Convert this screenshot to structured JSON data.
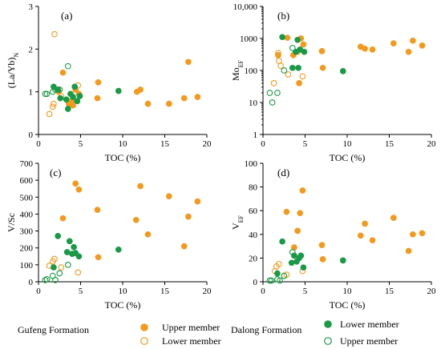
{
  "colors": {
    "gufeng": "#f39a1c",
    "dalong": "#1a9a47"
  },
  "legend": {
    "gufeng_title": "Gufeng Formation",
    "dalong_title": "Dalong Formation",
    "gufeng_upper": "Upper member",
    "gufeng_lower": "Lower member",
    "dalong_lower": "Lower member",
    "dalong_upper": "Upper member"
  },
  "chart_data": [
    {
      "panel": "(a)",
      "type": "scatter",
      "xlabel": "TOC (%)",
      "ylabel": "(La/Yb)N",
      "ylabel_main": "(La/Yb)",
      "ylabel_sub": "N",
      "xlim": [
        0,
        20
      ],
      "ylim": [
        0,
        3
      ],
      "yscale": "linear",
      "xticks": [
        "0",
        "5",
        "10",
        "15",
        "20"
      ],
      "yticks": [
        "0",
        "1",
        "2",
        "3"
      ],
      "series": [
        {
          "key": "gufeng_upper",
          "fill": true,
          "color": "#f39a1c",
          "points": [
            [
              2.4,
              1.0
            ],
            [
              2.9,
              1.45
            ],
            [
              3.6,
              0.72
            ],
            [
              3.9,
              0.78
            ],
            [
              4.1,
              0.68
            ],
            [
              4.4,
              1.05
            ],
            [
              4.8,
              0.95
            ],
            [
              7.0,
              0.85
            ],
            [
              7.1,
              1.22
            ],
            [
              11.7,
              1.0
            ],
            [
              12.1,
              1.05
            ],
            [
              13.0,
              0.72
            ],
            [
              15.5,
              0.72
            ],
            [
              17.3,
              0.85
            ],
            [
              17.8,
              1.7
            ],
            [
              18.9,
              0.88
            ]
          ]
        },
        {
          "key": "gufeng_lower",
          "fill": false,
          "color": "#f39a1c",
          "points": [
            [
              1.3,
              0.48
            ],
            [
              1.7,
              0.65
            ],
            [
              1.8,
              0.72
            ],
            [
              1.9,
              2.35
            ],
            [
              2.5,
              1.05
            ],
            [
              2.7,
              0.9
            ],
            [
              4.7,
              1.15
            ]
          ]
        },
        {
          "key": "dalong_lower",
          "fill": true,
          "color": "#1a9a47",
          "points": [
            [
              1.8,
              1.12
            ],
            [
              2.3,
              1.05
            ],
            [
              2.6,
              0.85
            ],
            [
              3.3,
              0.82
            ],
            [
              3.5,
              0.6
            ],
            [
              3.8,
              0.95
            ],
            [
              4.1,
              0.88
            ],
            [
              4.3,
              1.12
            ],
            [
              4.6,
              0.78
            ],
            [
              4.9,
              0.9
            ],
            [
              9.5,
              1.02
            ]
          ]
        },
        {
          "key": "dalong_upper",
          "fill": false,
          "color": "#1a9a47",
          "points": [
            [
              0.8,
              0.95
            ],
            [
              1.0,
              0.95
            ],
            [
              1.7,
              1.0
            ],
            [
              2.0,
              1.05
            ],
            [
              2.5,
              1.05
            ],
            [
              3.5,
              1.6
            ]
          ]
        }
      ]
    },
    {
      "panel": "(b)",
      "type": "scatter",
      "xlabel": "TOC (%)",
      "ylabel": "MoEF",
      "ylabel_main": "Mo",
      "ylabel_sub": "EF",
      "xlim": [
        0,
        20
      ],
      "ylim": [
        1,
        10000
      ],
      "yscale": "log",
      "xticks": [
        "0",
        "5",
        "10",
        "15",
        "20"
      ],
      "yticks": [
        "1",
        "10",
        "100",
        "1000",
        "10,000"
      ],
      "series": [
        {
          "key": "gufeng_upper",
          "fill": true,
          "color": "#f39a1c",
          "points": [
            [
              1.8,
              300
            ],
            [
              2.9,
              1050
            ],
            [
              3.6,
              300
            ],
            [
              4.1,
              380
            ],
            [
              4.3,
              40
            ],
            [
              4.5,
              1000
            ],
            [
              4.8,
              650
            ],
            [
              7.0,
              400
            ],
            [
              7.1,
              120
            ],
            [
              11.6,
              550
            ],
            [
              12.1,
              480
            ],
            [
              13.0,
              450
            ],
            [
              15.5,
              700
            ],
            [
              17.3,
              380
            ],
            [
              17.8,
              850
            ],
            [
              18.9,
              600
            ]
          ]
        },
        {
          "key": "gufeng_lower",
          "fill": false,
          "color": "#f39a1c",
          "points": [
            [
              1.3,
              40
            ],
            [
              1.8,
              350
            ],
            [
              1.9,
              200
            ],
            [
              2.1,
              140
            ],
            [
              3.0,
              75
            ],
            [
              4.7,
              65
            ]
          ]
        },
        {
          "key": "dalong_lower",
          "fill": true,
          "color": "#1a9a47",
          "points": [
            [
              2.3,
              1100
            ],
            [
              3.5,
              120
            ],
            [
              3.9,
              380
            ],
            [
              4.1,
              900
            ],
            [
              4.2,
              120
            ],
            [
              4.4,
              450
            ],
            [
              4.9,
              380
            ],
            [
              9.5,
              95
            ]
          ]
        },
        {
          "key": "dalong_upper",
          "fill": false,
          "color": "#1a9a47",
          "points": [
            [
              0.8,
              20
            ],
            [
              1.1,
              10
            ],
            [
              1.7,
              20
            ],
            [
              2.5,
              100
            ],
            [
              3.5,
              500
            ]
          ]
        }
      ]
    },
    {
      "panel": "(c)",
      "type": "scatter",
      "xlabel": "TOC (%)",
      "ylabel": "V/Sc",
      "xlim": [
        0,
        20
      ],
      "ylim": [
        0,
        700
      ],
      "yscale": "linear",
      "xticks": [
        "0",
        "5",
        "10",
        "15",
        "20"
      ],
      "yticks": [
        "0",
        "100",
        "200",
        "300",
        "400",
        "500",
        "600",
        "700"
      ],
      "series": [
        {
          "key": "gufeng_upper",
          "fill": true,
          "color": "#f39a1c",
          "points": [
            [
              2.9,
              375
            ],
            [
              3.7,
              240
            ],
            [
              4.4,
              580
            ],
            [
              4.8,
              545
            ],
            [
              7.0,
              425
            ],
            [
              7.1,
              145
            ],
            [
              11.6,
              365
            ],
            [
              12.1,
              565
            ],
            [
              13.0,
              280
            ],
            [
              15.5,
              505
            ],
            [
              17.3,
              210
            ],
            [
              17.8,
              385
            ],
            [
              18.9,
              475
            ]
          ]
        },
        {
          "key": "gufeng_lower",
          "fill": false,
          "color": "#f39a1c",
          "points": [
            [
              1.3,
              95
            ],
            [
              1.7,
              120
            ],
            [
              1.9,
              135
            ],
            [
              2.7,
              85
            ],
            [
              4.7,
              55
            ]
          ]
        },
        {
          "key": "dalong_lower",
          "fill": true,
          "color": "#1a9a47",
          "points": [
            [
              1.8,
              85
            ],
            [
              2.3,
              270
            ],
            [
              3.4,
              175
            ],
            [
              3.7,
              240
            ],
            [
              4.0,
              165
            ],
            [
              4.2,
              205
            ],
            [
              4.4,
              170
            ],
            [
              4.8,
              150
            ],
            [
              9.5,
              190
            ]
          ]
        },
        {
          "key": "dalong_upper",
          "fill": false,
          "color": "#1a9a47",
          "points": [
            [
              0.8,
              10
            ],
            [
              1.0,
              15
            ],
            [
              1.7,
              35
            ],
            [
              2.0,
              10
            ],
            [
              2.5,
              50
            ],
            [
              3.5,
              100
            ]
          ]
        }
      ]
    },
    {
      "panel": "(d)",
      "type": "scatter",
      "xlabel": "TOC (%)",
      "ylabel": "VEF",
      "ylabel_main": "V",
      "ylabel_sub": "EF",
      "xlim": [
        0,
        20
      ],
      "ylim": [
        0,
        100
      ],
      "yscale": "linear",
      "xticks": [
        "0",
        "5",
        "10",
        "15",
        "20"
      ],
      "yticks": [
        "0",
        "20",
        "40",
        "60",
        "80",
        "100"
      ],
      "series": [
        {
          "key": "gufeng_upper",
          "fill": true,
          "color": "#f39a1c",
          "points": [
            [
              2.8,
              59
            ],
            [
              3.7,
              29
            ],
            [
              4.1,
              43
            ],
            [
              4.4,
              58
            ],
            [
              4.7,
              77
            ],
            [
              7.0,
              31
            ],
            [
              7.1,
              19
            ],
            [
              11.6,
              39
            ],
            [
              12.1,
              49
            ],
            [
              13.0,
              35
            ],
            [
              15.5,
              54
            ],
            [
              17.3,
              26
            ],
            [
              17.8,
              40
            ],
            [
              18.9,
              41
            ]
          ]
        },
        {
          "key": "gufeng_lower",
          "fill": false,
          "color": "#f39a1c",
          "points": [
            [
              1.4,
              9
            ],
            [
              1.6,
              13
            ],
            [
              1.9,
              15
            ],
            [
              2.5,
              5
            ],
            [
              2.8,
              6
            ],
            [
              4.7,
              9
            ]
          ]
        },
        {
          "key": "dalong_lower",
          "fill": true,
          "color": "#1a9a47",
          "points": [
            [
              1.7,
              7
            ],
            [
              2.3,
              34
            ],
            [
              3.4,
              16
            ],
            [
              3.7,
              22
            ],
            [
              4.0,
              17
            ],
            [
              4.3,
              20
            ],
            [
              4.5,
              22
            ],
            [
              4.8,
              12
            ],
            [
              9.5,
              18
            ]
          ]
        },
        {
          "key": "dalong_upper",
          "fill": false,
          "color": "#1a9a47",
          "points": [
            [
              0.8,
              1
            ],
            [
              1.0,
              1
            ],
            [
              1.7,
              2
            ],
            [
              2.0,
              1
            ],
            [
              2.5,
              5
            ],
            [
              3.5,
              25
            ]
          ]
        }
      ]
    }
  ]
}
